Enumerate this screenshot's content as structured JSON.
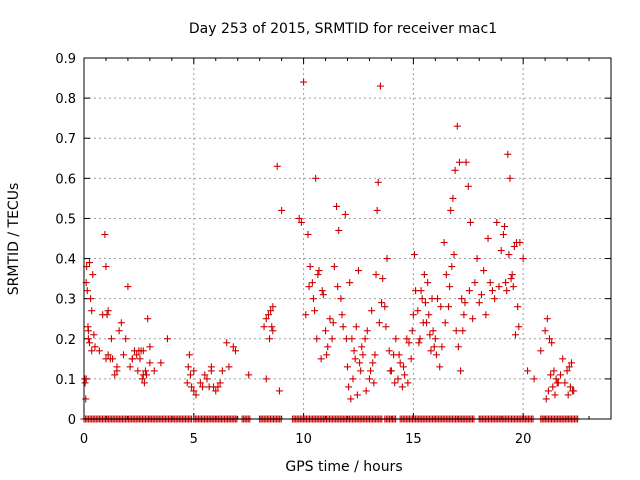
{
  "chart_data": {
    "type": "scatter",
    "title": "Day 253 of 2015, SRMTID for receiver mac1",
    "xlabel": "GPS time / hours",
    "ylabel": "SRMTID / TECUs",
    "xlim": [
      0,
      24
    ],
    "ylim": [
      0,
      0.9
    ],
    "xticks": [
      0,
      5,
      10,
      15,
      20
    ],
    "yticks": [
      0,
      0.1,
      0.2,
      0.3,
      0.4,
      0.5,
      0.6,
      0.7,
      0.8,
      0.9
    ],
    "xtick_labels": [
      "0",
      "5",
      "10",
      "15",
      "20"
    ],
    "ytick_labels": [
      "0",
      "0.1",
      "0.2",
      "0.3",
      "0.4",
      "0.5",
      "0.6",
      "0.7",
      "0.8",
      "0.9"
    ],
    "grid": true,
    "marker": "+",
    "color": "#cc0000",
    "zero_baseline_x": [
      [
        0.0,
        4.9
      ],
      [
        5.0,
        7.0
      ],
      [
        7.2,
        7.6
      ],
      [
        8.0,
        9.0
      ],
      [
        9.5,
        13.6
      ],
      [
        13.7,
        14.2
      ],
      [
        14.4,
        17.8
      ],
      [
        18.0,
        20.5
      ],
      [
        20.8,
        22.5
      ]
    ],
    "series": [
      {
        "name": "SRMTID",
        "x": [
          0.03,
          0.05,
          0.08,
          0.1,
          0.12,
          0.15,
          0.18,
          0.2,
          0.25,
          0.3,
          0.35,
          0.4,
          0.45,
          0.5,
          0.7,
          0.85,
          0.95,
          1.0,
          1.05,
          1.1,
          1.2,
          1.25,
          1.3,
          1.4,
          1.5,
          1.6,
          1.7,
          1.8,
          1.9,
          2.0,
          2.1,
          2.2,
          2.3,
          2.4,
          2.45,
          2.5,
          2.55,
          2.6,
          2.65,
          2.7,
          2.75,
          2.8,
          2.85,
          2.9,
          3.0,
          3.2,
          3.5,
          3.8,
          4.7,
          4.75,
          4.8,
          4.85,
          4.9,
          5.0,
          5.1,
          5.3,
          5.5,
          5.6,
          5.7,
          5.8,
          5.9,
          6.0,
          6.1,
          6.3,
          6.5,
          6.6,
          6.8,
          7.5,
          8.2,
          8.3,
          8.4,
          8.45,
          8.5,
          8.55,
          8.6,
          8.8,
          9.0,
          9.8,
          9.9,
          10.0,
          10.1,
          10.2,
          10.3,
          10.4,
          10.5,
          10.55,
          10.6,
          10.7,
          10.8,
          10.9,
          11.0,
          11.1,
          11.2,
          11.3,
          11.4,
          11.5,
          11.6,
          11.7,
          11.8,
          11.9,
          12.0,
          12.1,
          12.2,
          12.25,
          12.3,
          12.35,
          12.4,
          12.5,
          12.6,
          12.7,
          12.8,
          12.9,
          13.0,
          13.1,
          13.2,
          13.25,
          13.3,
          13.35,
          13.4,
          13.5,
          13.6,
          13.7,
          13.8,
          13.9,
          14.0,
          14.1,
          14.2,
          14.3,
          14.4,
          14.5,
          14.6,
          14.7,
          14.8,
          14.9,
          15.0,
          15.1,
          15.2,
          15.3,
          15.4,
          15.5,
          15.6,
          15.7,
          15.8,
          15.9,
          16.0,
          16.1,
          16.2,
          16.3,
          16.4,
          16.5,
          16.6,
          16.7,
          16.8,
          16.85,
          16.9,
          17.0,
          17.1,
          17.2,
          17.3,
          17.4,
          17.5,
          17.6,
          17.8,
          18.0,
          18.2,
          18.4,
          18.6,
          18.8,
          19.0,
          19.1,
          19.2,
          19.3,
          19.4,
          19.5,
          19.6,
          19.7,
          19.8,
          20.0,
          20.2,
          20.5,
          20.8,
          21.0,
          21.1,
          21.2,
          21.3,
          21.4,
          21.5,
          21.6,
          21.8,
          22.0,
          22.1,
          22.2,
          22.3,
          0.1,
          0.2,
          0.25,
          0.35,
          1.0,
          1.1,
          1.5,
          2.2,
          2.7,
          3.0,
          5.0,
          5.4,
          5.8,
          6.2,
          6.9,
          8.3,
          8.6,
          8.9,
          10.25,
          10.45,
          10.65,
          10.85,
          11.05,
          11.35,
          11.55,
          11.75,
          11.95,
          12.05,
          12.15,
          12.45,
          12.55,
          12.65,
          12.85,
          13.05,
          13.15,
          13.45,
          13.55,
          13.75,
          13.95,
          14.15,
          14.35,
          14.55,
          14.75,
          14.95,
          15.05,
          15.25,
          15.35,
          15.45,
          15.55,
          15.65,
          15.75,
          15.85,
          15.95,
          16.05,
          16.25,
          16.45,
          16.65,
          16.75,
          16.95,
          17.05,
          17.15,
          17.25,
          17.35,
          17.55,
          17.7,
          17.9,
          18.1,
          18.3,
          18.5,
          18.7,
          18.9,
          19.15,
          19.25,
          19.35,
          19.45,
          19.55,
          19.65,
          19.75,
          19.85,
          21.05,
          21.15,
          21.25,
          21.35,
          21.45,
          21.55,
          21.7,
          21.9,
          22.05,
          22.15,
          22.25
        ],
        "y": [
          0.1,
          0.09,
          0.05,
          0.34,
          0.38,
          0.32,
          0.23,
          0.2,
          0.39,
          0.3,
          0.27,
          0.36,
          0.21,
          0.18,
          0.17,
          0.26,
          0.46,
          0.38,
          0.26,
          0.27,
          0.15,
          0.2,
          0.15,
          0.11,
          0.12,
          0.22,
          0.24,
          0.16,
          0.2,
          0.33,
          0.13,
          0.15,
          0.17,
          0.16,
          0.12,
          0.17,
          0.15,
          0.17,
          0.1,
          0.11,
          0.09,
          0.12,
          0.11,
          0.25,
          0.18,
          0.12,
          0.14,
          0.2,
          0.09,
          0.13,
          0.16,
          0.11,
          0.08,
          0.07,
          0.06,
          0.09,
          0.11,
          0.1,
          0.08,
          0.13,
          0.08,
          0.07,
          0.08,
          0.12,
          0.19,
          0.13,
          0.18,
          0.11,
          0.23,
          0.1,
          0.26,
          0.2,
          0.27,
          0.23,
          0.28,
          0.63,
          0.52,
          0.5,
          0.49,
          0.84,
          0.26,
          0.46,
          0.38,
          0.34,
          0.27,
          0.6,
          0.2,
          0.37,
          0.15,
          0.31,
          0.22,
          0.18,
          0.25,
          0.2,
          0.38,
          0.53,
          0.47,
          0.3,
          0.23,
          0.51,
          0.13,
          0.34,
          0.2,
          0.1,
          0.17,
          0.15,
          0.23,
          0.37,
          0.12,
          0.16,
          0.2,
          0.22,
          0.1,
          0.27,
          0.09,
          0.16,
          0.36,
          0.52,
          0.59,
          0.83,
          0.35,
          0.28,
          0.4,
          0.17,
          0.12,
          0.16,
          0.2,
          0.1,
          0.14,
          0.08,
          0.11,
          0.2,
          0.19,
          0.15,
          0.26,
          0.32,
          0.27,
          0.2,
          0.3,
          0.36,
          0.24,
          0.26,
          0.17,
          0.22,
          0.2,
          0.3,
          0.13,
          0.18,
          0.44,
          0.36,
          0.28,
          0.52,
          0.55,
          0.41,
          0.62,
          0.73,
          0.64,
          0.3,
          0.26,
          0.64,
          0.58,
          0.49,
          0.34,
          0.29,
          0.37,
          0.45,
          0.32,
          0.49,
          0.42,
          0.46,
          0.34,
          0.66,
          0.6,
          0.36,
          0.43,
          0.44,
          0.23,
          0.4,
          0.12,
          0.1,
          0.17,
          0.22,
          0.25,
          0.2,
          0.19,
          0.12,
          0.1,
          0.09,
          0.15,
          0.12,
          0.13,
          0.14,
          0.07,
          0.1,
          0.22,
          0.19,
          0.17,
          0.15,
          0.16,
          0.13,
          0.15,
          0.17,
          0.14,
          0.12,
          0.08,
          0.12,
          0.09,
          0.17,
          0.25,
          0.22,
          0.07,
          0.33,
          0.3,
          0.36,
          0.32,
          0.16,
          0.24,
          0.33,
          0.26,
          0.2,
          0.08,
          0.05,
          0.06,
          0.14,
          0.18,
          0.07,
          0.12,
          0.14,
          0.24,
          0.29,
          0.23,
          0.12,
          0.09,
          0.16,
          0.13,
          0.09,
          0.22,
          0.41,
          0.19,
          0.32,
          0.24,
          0.29,
          0.34,
          0.21,
          0.3,
          0.18,
          0.16,
          0.28,
          0.24,
          0.33,
          0.38,
          0.22,
          0.18,
          0.12,
          0.22,
          0.29,
          0.32,
          0.25,
          0.4,
          0.31,
          0.26,
          0.34,
          0.3,
          0.33,
          0.48,
          0.32,
          0.41,
          0.35,
          0.33,
          0.21,
          0.28,
          0.44,
          0.05,
          0.07,
          0.11,
          0.08,
          0.06,
          0.09,
          0.11,
          0.09,
          0.06,
          0.08,
          0.07
        ]
      }
    ]
  }
}
